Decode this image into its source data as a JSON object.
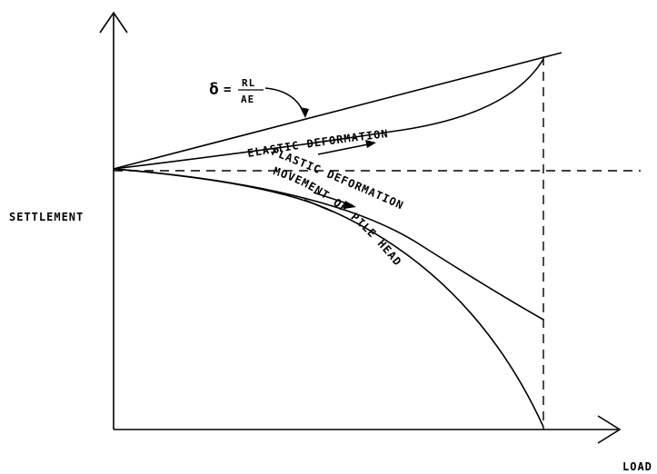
{
  "labels": {
    "y_axis": "SETTLEMENT",
    "x_axis": "LOAD",
    "elastic": "ELASTIC DEFORMATION",
    "plastic": "PLASTIC DEFORMATION",
    "movement": "MOVEMENT OF PILE HEAD"
  },
  "formula": {
    "lhs": "δ",
    "numerator": "RL",
    "denominator": "AE"
  }
}
